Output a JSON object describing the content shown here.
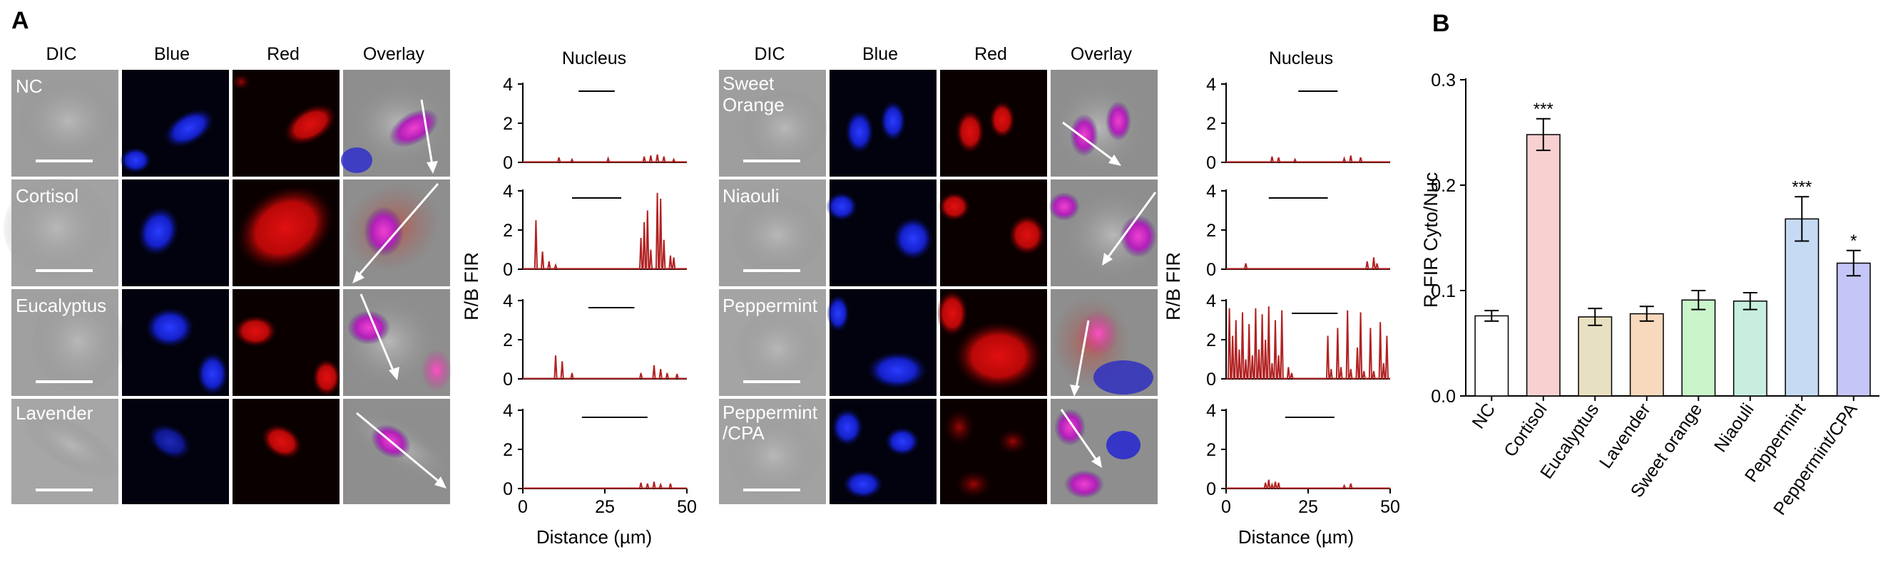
{
  "panel_labels": {
    "a": "A",
    "b": "B"
  },
  "microscopy": {
    "columns": [
      "DIC",
      "Blue",
      "Red",
      "Overlay"
    ],
    "left_rows": [
      "NC",
      "Cortisol",
      "Eucalyptus",
      "Lavender"
    ],
    "right_rows": [
      [
        "Sweet",
        "Orange"
      ],
      [
        "Niaouli"
      ],
      [
        "Peppermint"
      ],
      [
        "Peppermint",
        "/CPA"
      ]
    ]
  },
  "profiles": {
    "title": "Nucleus",
    "ylabel": "R/B FIR",
    "xlabel": "Distance (µm)",
    "y_ticks": [
      "4",
      "2",
      "0"
    ],
    "x_ticks": [
      "0",
      "25",
      "50"
    ],
    "x_range": [
      0,
      50
    ],
    "y_range": [
      0,
      4
    ],
    "line_color": "#b22222",
    "left": [
      {
        "treatment": "NC",
        "nucleus_range": [
          17,
          28
        ],
        "peaks": [
          [
            11,
            0.25
          ],
          [
            15,
            0.15
          ],
          [
            26,
            0.2
          ],
          [
            37,
            0.3
          ],
          [
            39,
            0.35
          ],
          [
            41,
            0.4
          ],
          [
            43,
            0.3
          ],
          [
            46,
            0.15
          ]
        ]
      },
      {
        "treatment": "Cortisol",
        "nucleus_range": [
          15,
          30
        ],
        "peaks": [
          [
            4,
            2.5
          ],
          [
            6,
            0.9
          ],
          [
            8,
            0.4
          ],
          [
            10,
            0.2
          ],
          [
            36,
            1.6
          ],
          [
            37,
            2.4
          ],
          [
            38,
            3.0
          ],
          [
            39,
            1.0
          ],
          [
            41,
            3.9
          ],
          [
            42,
            3.6
          ],
          [
            43,
            1.5
          ],
          [
            45,
            0.7
          ],
          [
            46,
            0.6
          ]
        ]
      },
      {
        "treatment": "Eucalyptus",
        "nucleus_range": [
          20,
          34
        ],
        "peaks": [
          [
            10,
            1.2
          ],
          [
            12,
            0.9
          ],
          [
            15,
            0.3
          ],
          [
            36,
            0.3
          ],
          [
            40,
            0.7
          ],
          [
            42,
            0.5
          ],
          [
            44,
            0.3
          ],
          [
            47,
            0.25
          ]
        ]
      },
      {
        "treatment": "Lavender",
        "nucleus_range": [
          18,
          38
        ],
        "peaks": [
          [
            36,
            0.3
          ],
          [
            38,
            0.25
          ],
          [
            40,
            0.35
          ],
          [
            42,
            0.2
          ],
          [
            45,
            0.25
          ]
        ]
      }
    ],
    "right": [
      {
        "treatment": "Sweet Orange",
        "nucleus_range": [
          22,
          34
        ],
        "peaks": [
          [
            14,
            0.3
          ],
          [
            16,
            0.25
          ],
          [
            21,
            0.15
          ],
          [
            36,
            0.2
          ],
          [
            38,
            0.35
          ],
          [
            41,
            0.25
          ]
        ]
      },
      {
        "treatment": "Niaouli",
        "nucleus_range": [
          13,
          31
        ],
        "peaks": [
          [
            6,
            0.3
          ],
          [
            43,
            0.4
          ],
          [
            45,
            0.6
          ],
          [
            46,
            0.3
          ]
        ]
      },
      {
        "treatment": "Peppermint",
        "nucleus_range": [
          20,
          34
        ],
        "peaks": [
          [
            1,
            3.6
          ],
          [
            2,
            2.2
          ],
          [
            3,
            3.0
          ],
          [
            4,
            1.5
          ],
          [
            5,
            3.4
          ],
          [
            6,
            1.0
          ],
          [
            7,
            2.8
          ],
          [
            8,
            1.2
          ],
          [
            9,
            3.6
          ],
          [
            10,
            1.5
          ],
          [
            11,
            3.3
          ],
          [
            12,
            2.0
          ],
          [
            13,
            3.7
          ],
          [
            14,
            0.8
          ],
          [
            15,
            3.0
          ],
          [
            16,
            1.2
          ],
          [
            17,
            3.5
          ],
          [
            19,
            0.6
          ],
          [
            20,
            0.3
          ],
          [
            31,
            2.2
          ],
          [
            32,
            0.5
          ],
          [
            34,
            2.6
          ],
          [
            35,
            0.6
          ],
          [
            37,
            3.5
          ],
          [
            38,
            0.5
          ],
          [
            40,
            1.6
          ],
          [
            41,
            3.4
          ],
          [
            42,
            0.4
          ],
          [
            44,
            2.6
          ],
          [
            45,
            0.4
          ],
          [
            47,
            2.9
          ],
          [
            48,
            0.8
          ],
          [
            49,
            2.2
          ]
        ]
      },
      {
        "treatment": "Peppermint/CPA",
        "nucleus_range": [
          18,
          33
        ],
        "peaks": [
          [
            12,
            0.3
          ],
          [
            13,
            0.45
          ],
          [
            14,
            0.2
          ],
          [
            15,
            0.35
          ],
          [
            16,
            0.3
          ],
          [
            36,
            0.15
          ],
          [
            38,
            0.25
          ]
        ]
      }
    ]
  },
  "chart_data": {
    "type": "bar",
    "categories": [
      "NC",
      "Cortisol",
      "Eucalyptus",
      "Lavender",
      "Sweet orange",
      "Niaouli",
      "Peppermint",
      "Peppermint/CPA"
    ],
    "values": [
      0.076,
      0.248,
      0.075,
      0.078,
      0.091,
      0.09,
      0.168,
      0.126
    ],
    "errors": [
      0.005,
      0.015,
      0.008,
      0.007,
      0.009,
      0.008,
      0.021,
      0.012
    ],
    "significance": [
      "",
      "***",
      "",
      "",
      "",
      "",
      "***",
      "*"
    ],
    "colors": [
      "#ffffff",
      "#f9d0d0",
      "#e8e0c2",
      "#f8d9bd",
      "#caf5cb",
      "#c7eede",
      "#c5daf3",
      "#c5c5f7"
    ],
    "ylabel": "R-FIR Cyto/Nuc",
    "ylim": [
      0,
      0.3
    ],
    "y_ticks": [
      "0.0",
      "0.1",
      "0.2",
      "0.3"
    ],
    "y_tick_values": [
      0,
      0.1,
      0.2,
      0.3
    ]
  }
}
